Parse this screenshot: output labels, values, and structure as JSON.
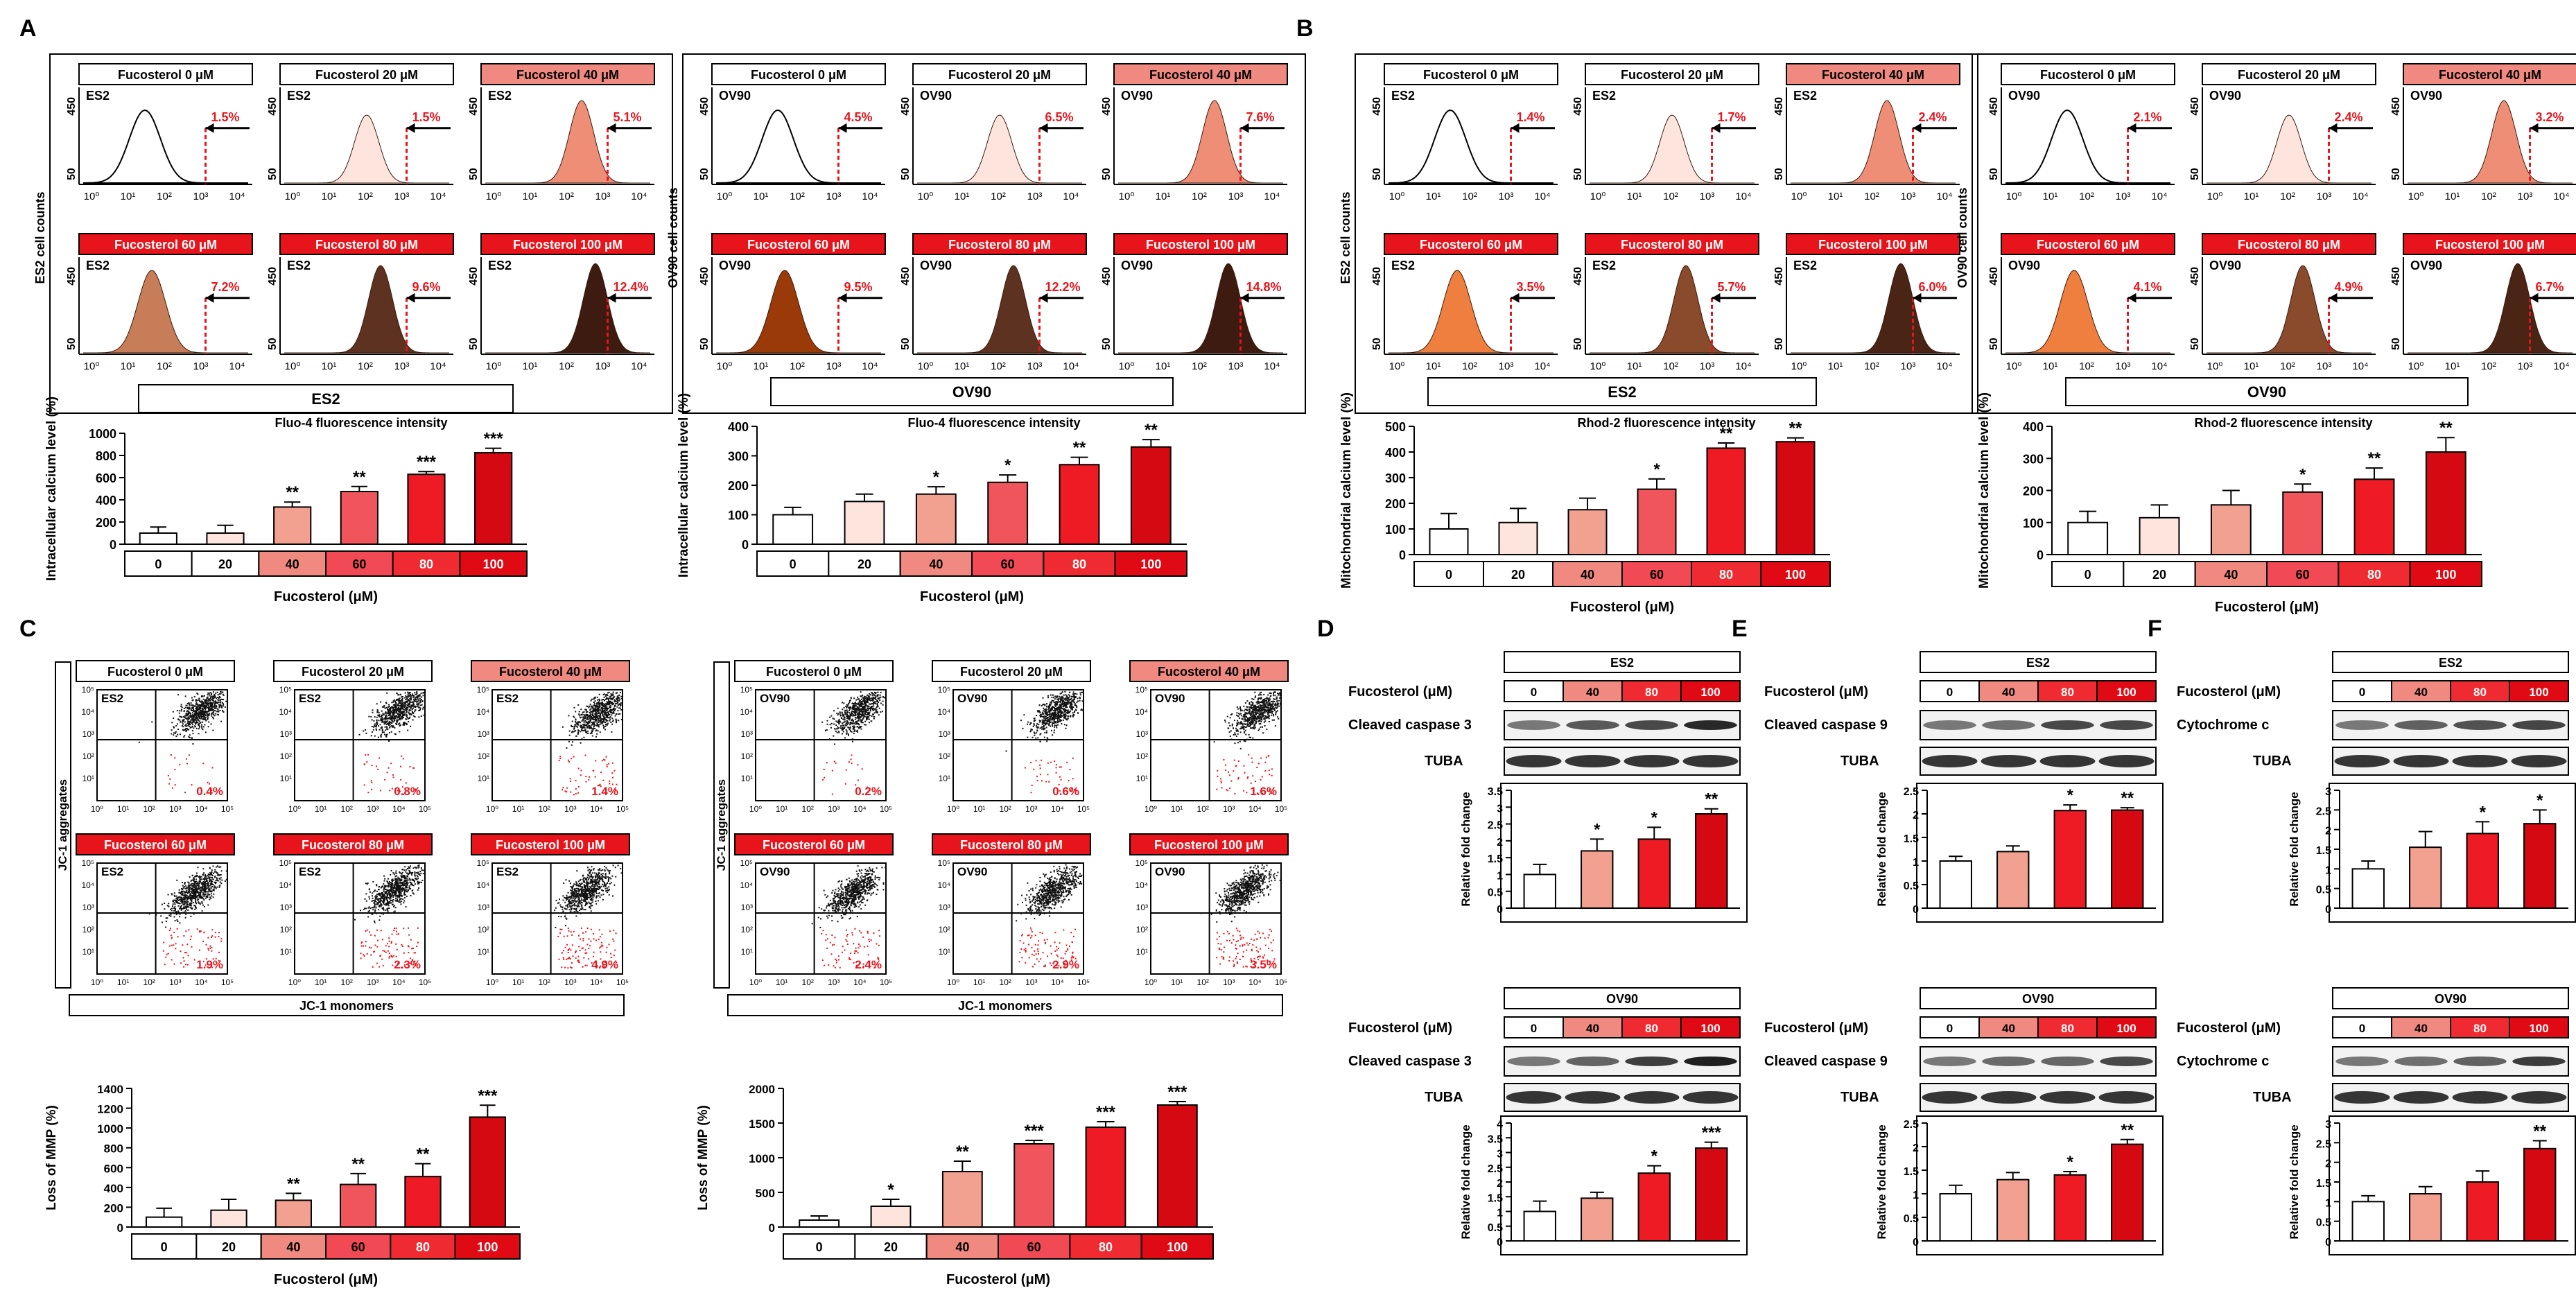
{
  "colors": {
    "c0": "#ffffff",
    "c20": "#fde4dc",
    "c40": "#f2a090",
    "c60": "#f0555c",
    "c80": "#ee1b24",
    "c100": "#d40912",
    "e40": "#ee8e76",
    "e60": "#c77d58",
    "e80": "#5e3220",
    "e100": "#3d1b10",
    "m60": "#ef7f3f",
    "m80": "#8a4a2c",
    "m100": "#4a2414",
    "o60": "#9a3a08",
    "marker": "#e8141c",
    "hdr40": "#f08a80",
    "hdr60": "#f24a55",
    "hdr80": "#ef2a30",
    "hdr100": "#e00a15"
  },
  "panel_letters": [
    "A",
    "B",
    "C",
    "D",
    "E",
    "F"
  ],
  "flow": {
    "A_ES2": {
      "xlabel": "Fluo-4 fluorescence intensity",
      "ylabel": "ES2 cell counts",
      "cell": "ES2",
      "ymax": "450",
      "ymin": "50",
      "plots": [
        {
          "title": "Fucosterol 0 μM",
          "pct": "1.5%",
          "fill": "none"
        },
        {
          "title": "Fucosterol 20 μM",
          "pct": "1.5%",
          "fill": "c20"
        },
        {
          "title": "Fucosterol 40 μM",
          "pct": "5.1%",
          "fill": "e40"
        },
        {
          "title": "Fucosterol 60 μM",
          "pct": "7.2%",
          "fill": "e60"
        },
        {
          "title": "Fucosterol 80 μM",
          "pct": "9.6%",
          "fill": "e80"
        },
        {
          "title": "Fucosterol 100 μM",
          "pct": "12.4%",
          "fill": "e100"
        }
      ]
    },
    "A_OV90": {
      "xlabel": "Fluo-4 fluorescence intensity",
      "ylabel": "OV90 cell counts",
      "cell": "OV90",
      "ymax": "450",
      "ymin": "50",
      "plots": [
        {
          "title": "Fucosterol 0 μM",
          "pct": "4.5%",
          "fill": "none"
        },
        {
          "title": "Fucosterol 20 μM",
          "pct": "6.5%",
          "fill": "c20"
        },
        {
          "title": "Fucosterol 40 μM",
          "pct": "7.6%",
          "fill": "e40"
        },
        {
          "title": "Fucosterol 60 μM",
          "pct": "9.5%",
          "fill": "o60"
        },
        {
          "title": "Fucosterol 80 μM",
          "pct": "12.2%",
          "fill": "e80"
        },
        {
          "title": "Fucosterol 100 μM",
          "pct": "14.8%",
          "fill": "e100"
        }
      ]
    },
    "B_ES2": {
      "xlabel": "Rhod-2 fluorescence intensity",
      "ylabel": "ES2 cell counts",
      "cell": "ES2",
      "ymax": "450",
      "ymin": "50",
      "plots": [
        {
          "title": "Fucosterol 0 μM",
          "pct": "1.4%",
          "fill": "none"
        },
        {
          "title": "Fucosterol 20 μM",
          "pct": "1.7%",
          "fill": "c20"
        },
        {
          "title": "Fucosterol 40 μM",
          "pct": "2.4%",
          "fill": "e40"
        },
        {
          "title": "Fucosterol 60 μM",
          "pct": "3.5%",
          "fill": "m60"
        },
        {
          "title": "Fucosterol 80 μM",
          "pct": "5.7%",
          "fill": "m80"
        },
        {
          "title": "Fucosterol 100 μM",
          "pct": "6.0%",
          "fill": "m100"
        }
      ]
    },
    "B_OV90": {
      "xlabel": "Rhod-2 fluorescence intensity",
      "ylabel": "OV90 cell counts",
      "cell": "OV90",
      "ymax": "450",
      "ymin": "50",
      "plots": [
        {
          "title": "Fucosterol 0 μM",
          "pct": "2.1%",
          "fill": "none"
        },
        {
          "title": "Fucosterol 20 μM",
          "pct": "2.4%",
          "fill": "c20"
        },
        {
          "title": "Fucosterol 40 μM",
          "pct": "3.2%",
          "fill": "e40"
        },
        {
          "title": "Fucosterol 60 μM",
          "pct": "4.1%",
          "fill": "m60"
        },
        {
          "title": "Fucosterol 80 μM",
          "pct": "4.9%",
          "fill": "m80"
        },
        {
          "title": "Fucosterol 100 μM",
          "pct": "6.7%",
          "fill": "m100"
        }
      ]
    }
  },
  "ticks_flow": [
    "10⁰",
    "10¹",
    "10²",
    "10³",
    "10⁴"
  ],
  "scatter": {
    "C_ES2": {
      "ylabel": "JC-1 aggregates",
      "xlabel": "JC-1 monomers",
      "cell": "ES2",
      "plots": [
        {
          "title": "Fucosterol 0 μM",
          "pct": "0.4%"
        },
        {
          "title": "Fucosterol 20 μM",
          "pct": "0.8%"
        },
        {
          "title": "Fucosterol 40 μM",
          "pct": "1.4%"
        },
        {
          "title": "Fucosterol 60 μM",
          "pct": "1.9%"
        },
        {
          "title": "Fucosterol 80 μM",
          "pct": "2.3%"
        },
        {
          "title": "Fucosterol 100 μM",
          "pct": "4.9%"
        }
      ]
    },
    "C_OV90": {
      "ylabel": "JC-1 aggregates",
      "xlabel": "JC-1 monomers",
      "cell": "OV90",
      "plots": [
        {
          "title": "Fucosterol 0 μM",
          "pct": "0.2%"
        },
        {
          "title": "Fucosterol 20 μM",
          "pct": "0.6%"
        },
        {
          "title": "Fucosterol 40 μM",
          "pct": "1.6%"
        },
        {
          "title": "Fucosterol 60 μM",
          "pct": "2.4%"
        },
        {
          "title": "Fucosterol 80 μM",
          "pct": "2.9%"
        },
        {
          "title": "Fucosterol 100 μM",
          "pct": "3.5%"
        }
      ]
    }
  },
  "ticks_scatter": [
    "10⁰",
    "10¹",
    "10²",
    "10³",
    "10⁴",
    "10⁵"
  ],
  "blots": {
    "labels_header": "Fucosterol (μM)",
    "doses": [
      "0",
      "40",
      "80",
      "100"
    ],
    "D_ES2": {
      "cell": "ES2",
      "protein": "Cleaved caspase 3",
      "loading": "TUBA"
    },
    "D_OV90": {
      "cell": "OV90",
      "protein": "Cleaved caspase 3",
      "loading": "TUBA"
    },
    "E_ES2": {
      "cell": "ES2",
      "protein": "Cleaved caspase 9",
      "loading": "TUBA"
    },
    "E_OV90": {
      "cell": "OV90",
      "protein": "Cleaved caspase 9",
      "loading": "TUBA"
    },
    "F_ES2": {
      "cell": "ES2",
      "protein": "Cytochrome c",
      "loading": "TUBA"
    },
    "F_OV90": {
      "cell": "OV90",
      "protein": "Cytochrome c",
      "loading": "TUBA"
    }
  },
  "chart_data": [
    {
      "id": "A_ES2_bar",
      "type": "bar",
      "title": "ES2",
      "xlabel": "Fucosterol (μM)",
      "ylabel": "Intracellular calcium level (%)",
      "categories": [
        "0",
        "20",
        "40",
        "60",
        "80",
        "100"
      ],
      "values": [
        100,
        100,
        335,
        475,
        630,
        825
      ],
      "errors": [
        55,
        70,
        45,
        45,
        25,
        40
      ],
      "sig": [
        "",
        "",
        "**",
        "**",
        "***",
        "***"
      ],
      "ylim": [
        0,
        1000
      ],
      "yticks": [
        "0",
        "200",
        "400",
        "600",
        "800",
        "1000"
      ]
    },
    {
      "id": "A_OV90_bar",
      "type": "bar",
      "title": "OV90",
      "xlabel": "Fucosterol (μM)",
      "ylabel": "Intracellular calcium level (%)",
      "categories": [
        "0",
        "20",
        "40",
        "60",
        "80",
        "100"
      ],
      "values": [
        100,
        145,
        170,
        210,
        270,
        330
      ],
      "errors": [
        25,
        25,
        25,
        25,
        25,
        25
      ],
      "sig": [
        "",
        "",
        "*",
        "*",
        "**",
        "**"
      ],
      "ylim": [
        0,
        400
      ],
      "yticks": [
        "0",
        "100",
        "200",
        "300",
        "400"
      ]
    },
    {
      "id": "B_ES2_bar",
      "type": "bar",
      "title": "ES2",
      "xlabel": "Fucosterol (μM)",
      "ylabel": "Mitochondrial calcium level (%)",
      "categories": [
        "0",
        "20",
        "40",
        "60",
        "80",
        "100"
      ],
      "values": [
        100,
        125,
        175,
        255,
        415,
        440
      ],
      "errors": [
        60,
        55,
        45,
        40,
        20,
        15
      ],
      "sig": [
        "",
        "",
        "",
        "*",
        "**",
        "**"
      ],
      "ylim": [
        0,
        500
      ],
      "yticks": [
        "0",
        "100",
        "200",
        "300",
        "400",
        "500"
      ]
    },
    {
      "id": "B_OV90_bar",
      "type": "bar",
      "title": "OV90",
      "xlabel": "Fucosterol (μM)",
      "ylabel": "Mitochondrial calcium level (%)",
      "categories": [
        "0",
        "20",
        "40",
        "60",
        "80",
        "100"
      ],
      "values": [
        100,
        115,
        155,
        195,
        235,
        320
      ],
      "errors": [
        35,
        40,
        45,
        25,
        35,
        45
      ],
      "sig": [
        "",
        "",
        "",
        "*",
        "**",
        "**"
      ],
      "ylim": [
        0,
        400
      ],
      "yticks": [
        "0",
        "100",
        "200",
        "300",
        "400"
      ]
    },
    {
      "id": "C_ES2_bar",
      "type": "bar",
      "title": "",
      "xlabel": "Fucosterol (μM)",
      "ylabel": "Loss of MMP (%)",
      "categories": [
        "0",
        "20",
        "40",
        "60",
        "80",
        "100"
      ],
      "values": [
        100,
        170,
        270,
        430,
        510,
        1110
      ],
      "errors": [
        90,
        110,
        70,
        110,
        130,
        120
      ],
      "sig": [
        "",
        "",
        "**",
        "**",
        "**",
        "***"
      ],
      "ylim": [
        0,
        1400
      ],
      "yticks": [
        "0",
        "200",
        "400",
        "600",
        "800",
        "1000",
        "1200",
        "1400"
      ]
    },
    {
      "id": "C_OV90_bar",
      "type": "bar",
      "title": "",
      "xlabel": "Fucosterol (μM)",
      "ylabel": "Loss of MMP (%)",
      "categories": [
        "0",
        "20",
        "40",
        "60",
        "80",
        "100"
      ],
      "values": [
        100,
        300,
        800,
        1200,
        1440,
        1760
      ],
      "errors": [
        60,
        100,
        150,
        50,
        80,
        50
      ],
      "sig": [
        "",
        "*",
        "**",
        "***",
        "***",
        "***"
      ],
      "ylim": [
        0,
        2000
      ],
      "yticks": [
        "0",
        "500",
        "1000",
        "1500",
        "2000"
      ]
    },
    {
      "id": "D_ES2_bar",
      "type": "bar",
      "title": "",
      "xlabel": "",
      "ylabel": "Relative fold change",
      "categories": [
        "0",
        "40",
        "80",
        "100"
      ],
      "values": [
        1.0,
        1.7,
        2.05,
        2.8
      ],
      "errors": [
        0.3,
        0.35,
        0.35,
        0.15
      ],
      "sig": [
        "",
        "*",
        "*",
        "**"
      ],
      "ylim": [
        0,
        3.5
      ],
      "yticks": [
        "0",
        "0.5",
        "1",
        "1.5",
        "2",
        "2.5",
        "3",
        "3.5"
      ]
    },
    {
      "id": "D_OV90_bar",
      "type": "bar",
      "title": "",
      "xlabel": "",
      "ylabel": "Relative fold change",
      "categories": [
        "0",
        "40",
        "80",
        "100"
      ],
      "values": [
        1.0,
        1.45,
        2.3,
        3.15
      ],
      "errors": [
        0.35,
        0.2,
        0.25,
        0.2
      ],
      "sig": [
        "",
        "",
        "*",
        "***"
      ],
      "ylim": [
        0,
        4
      ],
      "yticks": [
        "0",
        "0.5",
        "1",
        "1.5",
        "2",
        "2.5",
        "3",
        "3.5",
        "4"
      ]
    },
    {
      "id": "E_ES2_bar",
      "type": "bar",
      "title": "",
      "xlabel": "",
      "ylabel": "Relative fold change",
      "categories": [
        "0",
        "40",
        "80",
        "100"
      ],
      "values": [
        1.0,
        1.2,
        2.07,
        2.08
      ],
      "errors": [
        0.1,
        0.12,
        0.12,
        0.05
      ],
      "sig": [
        "",
        "",
        "*",
        "**"
      ],
      "ylim": [
        0,
        2.5
      ],
      "yticks": [
        "0",
        "0.5",
        "1",
        "1.5",
        "2",
        "2.5"
      ]
    },
    {
      "id": "E_OV90_bar",
      "type": "bar",
      "title": "",
      "xlabel": "",
      "ylabel": "Relative fold change",
      "categories": [
        "0",
        "40",
        "80",
        "100"
      ],
      "values": [
        1.0,
        1.3,
        1.4,
        2.05
      ],
      "errors": [
        0.18,
        0.15,
        0.07,
        0.1
      ],
      "sig": [
        "",
        "",
        "*",
        "**"
      ],
      "ylim": [
        0,
        2.5
      ],
      "yticks": [
        "0",
        "0.5",
        "1",
        "1.5",
        "2",
        "2.5"
      ]
    },
    {
      "id": "F_ES2_bar",
      "type": "bar",
      "title": "",
      "xlabel": "",
      "ylabel": "Relative fold change",
      "categories": [
        "0",
        "40",
        "80",
        "100"
      ],
      "values": [
        1.0,
        1.55,
        1.9,
        2.15
      ],
      "errors": [
        0.2,
        0.4,
        0.3,
        0.35
      ],
      "sig": [
        "",
        "",
        "*",
        "*"
      ],
      "ylim": [
        0,
        3
      ],
      "yticks": [
        "0",
        "0.5",
        "1",
        "1.5",
        "2",
        "2.5",
        "3"
      ]
    },
    {
      "id": "F_OV90_bar",
      "type": "bar",
      "title": "",
      "xlabel": "",
      "ylabel": "Relative fold change",
      "categories": [
        "0",
        "40",
        "80",
        "100"
      ],
      "values": [
        1.0,
        1.2,
        1.5,
        2.35
      ],
      "errors": [
        0.15,
        0.18,
        0.28,
        0.2
      ],
      "sig": [
        "",
        "",
        "",
        "**"
      ],
      "ylim": [
        0,
        3
      ],
      "yticks": [
        "0",
        "0.5",
        "1",
        "1.5",
        "2",
        "2.5",
        "3"
      ]
    }
  ]
}
